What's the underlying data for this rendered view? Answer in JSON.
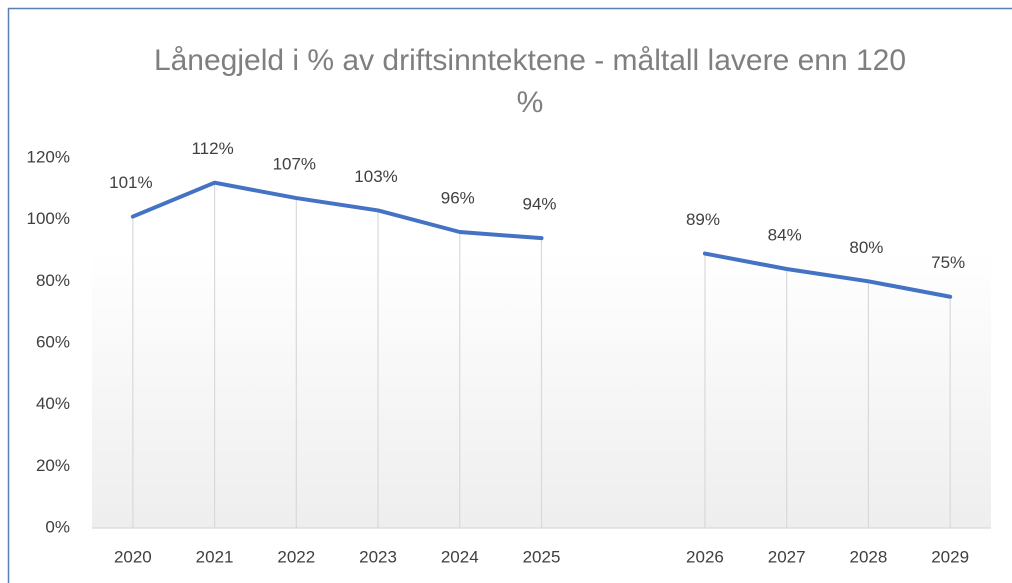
{
  "chart_data": {
    "type": "line",
    "title": "Lånegjeld i % av driftsinntektene - måltall lavere enn 120 %",
    "categories": [
      "2020",
      "2021",
      "2022",
      "2023",
      "2024",
      "2025",
      null,
      "2026",
      "2027",
      "2028",
      "2029"
    ],
    "series": [
      {
        "name": "Lånegjeld",
        "color": "#4472c4",
        "values": [
          101,
          112,
          107,
          103,
          96,
          94,
          null,
          89,
          84,
          80,
          75
        ],
        "value_labels": [
          "101%",
          "112%",
          "107%",
          "103%",
          "96%",
          "94%",
          null,
          "89%",
          "84%",
          "80%",
          "75%"
        ]
      }
    ],
    "ylim": [
      0,
      120
    ],
    "yticks": [
      {
        "value": 0,
        "label": "0%"
      },
      {
        "value": 20,
        "label": "20%"
      },
      {
        "value": 40,
        "label": "40%"
      },
      {
        "value": 60,
        "label": "60%"
      },
      {
        "value": 80,
        "label": "80%"
      },
      {
        "value": 100,
        "label": "100%"
      },
      {
        "value": 120,
        "label": "120%"
      }
    ],
    "grid": false
  }
}
